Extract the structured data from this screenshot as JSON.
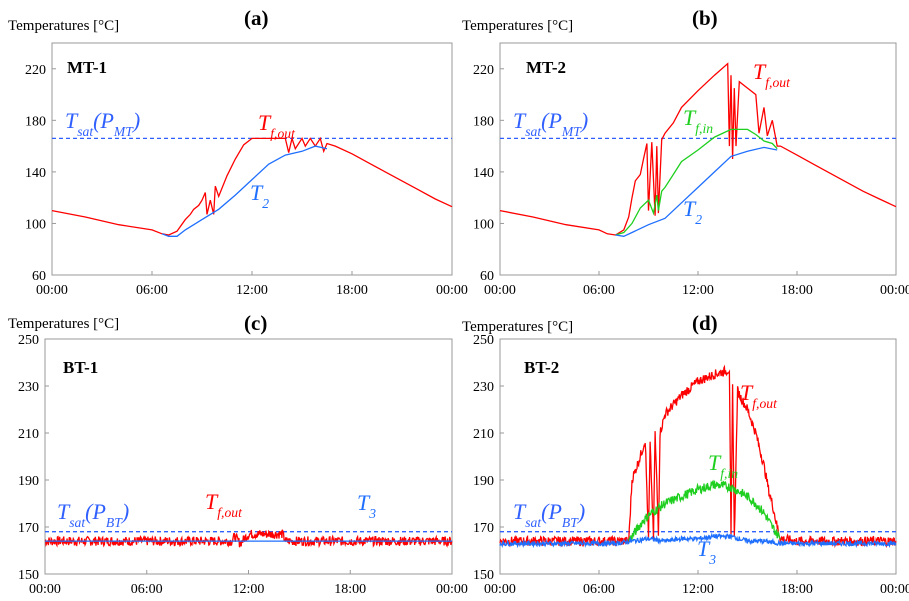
{
  "figure": {
    "series_colors": {
      "red": "#ff0000",
      "blue": "#1f6fff",
      "green": "#1fcf1f",
      "sat_line": "#2f5fff"
    }
  },
  "chart_data": [
    {
      "type": "line",
      "panel_label": "(a)",
      "title": "MT-1",
      "ylabel": "Temperatures [°C]",
      "xlabel": "",
      "x_ticks": [
        "00:00",
        "06:00",
        "12:00",
        "18:00",
        "00:00"
      ],
      "y_ticks": [
        60,
        100,
        140,
        180,
        220
      ],
      "xlim": [
        0,
        24
      ],
      "ylim": [
        60,
        240
      ],
      "grid": false,
      "sat_line": {
        "label": "Tsat(PMT)",
        "value": 166
      },
      "series": [
        {
          "name": "Tf,out",
          "color": "#ff0000",
          "x": [
            0,
            2,
            4,
            6,
            6.6,
            7,
            7.5,
            8,
            8.3,
            8.5,
            8.8,
            9.0,
            9.2,
            9.3,
            9.5,
            9.7,
            9.8,
            10,
            10.5,
            11,
            11.5,
            12,
            12.5,
            13,
            13.5,
            14,
            14.2,
            14.4,
            14.6,
            15,
            15.2,
            15.5,
            15.8,
            16.1,
            16.3,
            16.5,
            17,
            18,
            19,
            20,
            21,
            22,
            23,
            24
          ],
          "y": [
            110,
            105,
            99,
            95,
            92,
            91,
            94,
            103,
            107,
            111,
            114,
            118,
            124,
            107,
            118,
            107,
            129,
            121,
            137,
            150,
            161,
            166,
            166,
            166,
            166,
            166,
            155,
            166,
            158,
            166,
            160,
            166,
            160,
            166,
            156,
            162,
            160,
            154,
            147,
            140,
            133,
            126,
            119,
            113
          ]
        },
        {
          "name": "T2",
          "color": "#1f6fff",
          "x": [
            6.6,
            7,
            7.5,
            8,
            9,
            10,
            11,
            12,
            13,
            14,
            15,
            15.8,
            16.5
          ],
          "y": [
            92,
            90,
            90,
            95,
            103,
            111,
            122,
            134,
            146,
            153,
            156,
            160,
            158
          ]
        }
      ],
      "annotations": [
        "Tf,out",
        "T2"
      ]
    },
    {
      "type": "line",
      "panel_label": "(b)",
      "title": "MT-2",
      "ylabel": "Temperatures [°C]",
      "xlabel": "",
      "x_ticks": [
        "00:00",
        "06:00",
        "12:00",
        "18:00",
        "00:00"
      ],
      "y_ticks": [
        60,
        100,
        140,
        180,
        220
      ],
      "xlim": [
        0,
        24
      ],
      "ylim": [
        60,
        240
      ],
      "grid": false,
      "sat_line": {
        "label": "Tsat(PMT)",
        "value": 166
      },
      "series": [
        {
          "name": "Tf,out",
          "color": "#ff0000",
          "x": [
            0,
            2,
            4,
            6,
            6.5,
            7,
            7.5,
            7.8,
            8.0,
            8.2,
            8.5,
            8.7,
            8.9,
            9.0,
            9.2,
            9.4,
            9.5,
            9.6,
            9.8,
            10,
            10.5,
            11,
            12,
            13,
            13.8,
            13.9,
            14.0,
            14.1,
            14.2,
            14.3,
            14.5,
            15,
            15.5,
            15.7,
            16,
            16.2,
            16.5,
            16.8,
            17,
            18,
            19,
            20,
            21,
            22,
            23,
            24
          ],
          "y": [
            110,
            105,
            99,
            95,
            92,
            91,
            95,
            105,
            120,
            133,
            138,
            150,
            162,
            110,
            163,
            106,
            160,
            108,
            165,
            170,
            178,
            190,
            203,
            215,
            224,
            160,
            215,
            150,
            205,
            160,
            210,
            205,
            200,
            170,
            190,
            168,
            180,
            160,
            160,
            153,
            146,
            139,
            132,
            125,
            119,
            113
          ]
        },
        {
          "name": "Tf,in",
          "color": "#1fcf1f",
          "x": [
            7,
            7.5,
            8,
            8.5,
            9,
            9.3,
            9.5,
            9.6,
            9.8,
            10,
            10.5,
            11,
            12,
            13,
            14,
            15,
            15.5,
            16,
            16.5,
            16.8
          ],
          "y": [
            91,
            93,
            100,
            112,
            118,
            108,
            122,
            110,
            125,
            128,
            138,
            148,
            157,
            167,
            173,
            173,
            169,
            164,
            162,
            158
          ]
        },
        {
          "name": "T2",
          "color": "#1f6fff",
          "x": [
            7,
            7.5,
            8,
            9,
            10,
            11,
            12,
            13,
            14,
            15,
            16,
            16.8
          ],
          "y": [
            91,
            90,
            93,
            99,
            104,
            116,
            128,
            140,
            152,
            156,
            159,
            157
          ]
        }
      ],
      "annotations": [
        "Tf,out",
        "Tf,in",
        "T2"
      ]
    },
    {
      "type": "line",
      "panel_label": "(c)",
      "title": "BT-1",
      "ylabel": "Temperatures [°C]",
      "xlabel": "",
      "x_ticks": [
        "00:00",
        "06:00",
        "12:00",
        "18:00",
        "00:00"
      ],
      "y_ticks": [
        150,
        170,
        190,
        210,
        230,
        250
      ],
      "xlim": [
        0,
        24
      ],
      "ylim": [
        150,
        250
      ],
      "grid": false,
      "sat_line": {
        "label": "Tsat(PBT)",
        "value": 168
      },
      "series": [
        {
          "name": "Tf,out",
          "color": "#ff0000",
          "x": [
            0,
            2,
            4,
            6,
            8,
            10,
            11,
            11.2,
            11.5,
            12,
            12.5,
            13,
            13.5,
            14,
            14.2,
            16,
            18,
            20,
            22,
            24
          ],
          "y": [
            164,
            164,
            164,
            164,
            164,
            164,
            164,
            166,
            163,
            167,
            167,
            167,
            167,
            167,
            164,
            164,
            164,
            164,
            164,
            164
          ],
          "noise": 2
        },
        {
          "name": "T3",
          "color": "#1f6fff",
          "x": [
            0,
            24
          ],
          "y": [
            164,
            164
          ]
        }
      ],
      "annotations": [
        "Tf,out",
        "T3"
      ]
    },
    {
      "type": "line",
      "panel_label": "(d)",
      "title": "BT-2",
      "ylabel": "Temperatures [°C]",
      "xlabel": "",
      "x_ticks": [
        "00:00",
        "06:00",
        "12:00",
        "18:00",
        "00:00"
      ],
      "y_ticks": [
        150,
        170,
        190,
        210,
        230,
        250
      ],
      "xlim": [
        0,
        24
      ],
      "ylim": [
        150,
        250
      ],
      "grid": false,
      "sat_line": {
        "label": "Tsat(PBT)",
        "value": 168
      },
      "series": [
        {
          "name": "Tf,out",
          "color": "#ff0000",
          "x": [
            0,
            4,
            7,
            7.8,
            8,
            8.5,
            8.8,
            9.0,
            9.1,
            9.3,
            9.4,
            9.6,
            9.7,
            10,
            11,
            12,
            13,
            13.5,
            13.9,
            14.0,
            14.1,
            14.2,
            14.4,
            14.6,
            15,
            15.5,
            16,
            16.3,
            16.5,
            16.8,
            17,
            18,
            20,
            22,
            24
          ],
          "y": [
            164,
            164,
            164,
            164,
            190,
            200,
            207,
            165,
            205,
            165,
            210,
            168,
            210,
            218,
            226,
            232,
            235,
            236,
            237,
            165,
            230,
            165,
            228,
            225,
            220,
            210,
            196,
            185,
            180,
            170,
            165,
            164,
            164,
            164,
            164
          ],
          "noise": 2
        },
        {
          "name": "Tf,in",
          "color": "#1fcf1f",
          "x": [
            7.8,
            8.2,
            8.6,
            9,
            9.4,
            10,
            11,
            12,
            13,
            14,
            14.5,
            15,
            15.5,
            16,
            16.5,
            17
          ],
          "y": [
            164,
            168,
            172,
            175,
            177,
            180,
            183,
            186,
            188,
            187,
            185,
            183,
            180,
            176,
            170,
            165
          ],
          "noise": 2
        },
        {
          "name": "T3",
          "color": "#1f6fff",
          "x": [
            0,
            7,
            8,
            9,
            10,
            11,
            12,
            13,
            14,
            15,
            16,
            17,
            18,
            24
          ],
          "y": [
            163,
            163,
            164,
            165,
            164,
            165,
            165,
            166,
            166,
            164,
            164,
            163,
            163,
            163
          ],
          "noise": 1
        }
      ],
      "annotations": [
        "Tf,out",
        "Tf,in",
        "T3"
      ]
    }
  ]
}
